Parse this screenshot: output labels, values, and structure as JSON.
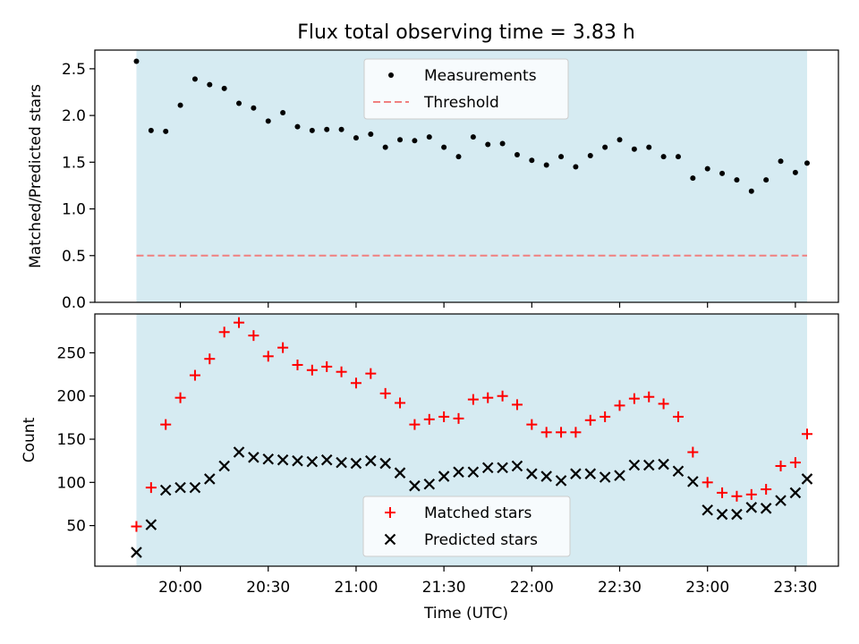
{
  "title": "Flux total observing time = 3.83 h",
  "colors": {
    "shade": "#add8e6",
    "measurement": "#000000",
    "threshold": "#f08080",
    "matched": "#ff0000",
    "predicted": "#000000"
  },
  "chart_data": [
    {
      "type": "scatter",
      "panel": "top",
      "ylabel": "Matched/Predicted stars",
      "ylim": [
        0,
        2.7
      ],
      "yticks": [
        "0.0",
        "0.5",
        "1.0",
        "1.5",
        "2.0",
        "2.5"
      ],
      "legend_position": "upper center",
      "shaded_interval": [
        "19:45",
        "23:34"
      ],
      "threshold": {
        "name": "Threshold",
        "value": 0.5,
        "style": "dashed"
      },
      "series": [
        {
          "name": "Measurements",
          "marker": "dot",
          "x": [
            "19:45",
            "19:50",
            "19:55",
            "20:00",
            "20:05",
            "20:10",
            "20:15",
            "20:20",
            "20:25",
            "20:30",
            "20:35",
            "20:40",
            "20:45",
            "20:50",
            "20:55",
            "21:00",
            "21:05",
            "21:10",
            "21:15",
            "21:20",
            "21:25",
            "21:30",
            "21:35",
            "21:40",
            "21:45",
            "21:50",
            "21:55",
            "22:00",
            "22:05",
            "22:10",
            "22:15",
            "22:20",
            "22:25",
            "22:30",
            "22:35",
            "22:40",
            "22:45",
            "22:50",
            "22:55",
            "23:00",
            "23:05",
            "23:10",
            "23:15",
            "23:20",
            "23:25",
            "23:30",
            "23:34"
          ],
          "values": [
            2.58,
            1.84,
            1.83,
            2.11,
            2.39,
            2.33,
            2.29,
            2.13,
            2.08,
            1.94,
            2.03,
            1.88,
            1.84,
            1.85,
            1.85,
            1.76,
            1.8,
            1.66,
            1.74,
            1.73,
            1.77,
            1.66,
            1.56,
            1.77,
            1.69,
            1.7,
            1.58,
            1.52,
            1.47,
            1.56,
            1.45,
            1.57,
            1.66,
            1.74,
            1.64,
            1.66,
            1.56,
            1.56,
            1.33,
            1.43,
            1.38,
            1.31,
            1.19,
            1.31,
            1.51,
            1.39,
            1.49
          ]
        }
      ]
    },
    {
      "type": "scatter",
      "panel": "bottom",
      "ylabel": "Count",
      "xlabel": "Time (UTC)",
      "ylim": [
        3,
        295
      ],
      "yticks": [
        "50",
        "100",
        "150",
        "200",
        "250"
      ],
      "xticks": [
        "20:00",
        "20:30",
        "21:00",
        "21:30",
        "22:00",
        "22:30",
        "23:00",
        "23:30"
      ],
      "legend_position": "lower center",
      "shaded_interval": [
        "19:45",
        "23:34"
      ],
      "series": [
        {
          "name": "Matched stars",
          "marker": "plus",
          "x": [
            "19:45",
            "19:50",
            "19:55",
            "20:00",
            "20:05",
            "20:10",
            "20:15",
            "20:20",
            "20:25",
            "20:30",
            "20:35",
            "20:40",
            "20:45",
            "20:50",
            "20:55",
            "21:00",
            "21:05",
            "21:10",
            "21:15",
            "21:20",
            "21:25",
            "21:30",
            "21:35",
            "21:40",
            "21:45",
            "21:50",
            "21:55",
            "22:00",
            "22:05",
            "22:10",
            "22:15",
            "22:20",
            "22:25",
            "22:30",
            "22:35",
            "22:40",
            "22:45",
            "22:50",
            "22:55",
            "23:00",
            "23:05",
            "23:10",
            "23:15",
            "23:20",
            "23:25",
            "23:30",
            "23:34"
          ],
          "values": [
            49,
            94,
            167,
            198,
            224,
            243,
            274,
            285,
            270,
            246,
            256,
            236,
            230,
            234,
            228,
            215,
            226,
            203,
            192,
            167,
            173,
            176,
            174,
            196,
            198,
            200,
            190,
            167,
            158,
            158,
            158,
            172,
            176,
            189,
            197,
            199,
            191,
            176,
            135,
            100,
            88,
            84,
            86,
            92,
            119,
            123,
            156
          ]
        },
        {
          "name": "Predicted stars",
          "marker": "x",
          "x": [
            "19:45",
            "19:50",
            "19:55",
            "20:00",
            "20:05",
            "20:10",
            "20:15",
            "20:20",
            "20:25",
            "20:30",
            "20:35",
            "20:40",
            "20:45",
            "20:50",
            "20:55",
            "21:00",
            "21:05",
            "21:10",
            "21:15",
            "21:20",
            "21:25",
            "21:30",
            "21:35",
            "21:40",
            "21:45",
            "21:50",
            "21:55",
            "22:00",
            "22:05",
            "22:10",
            "22:15",
            "22:20",
            "22:25",
            "22:30",
            "22:35",
            "22:40",
            "22:45",
            "22:50",
            "22:55",
            "23:00",
            "23:05",
            "23:10",
            "23:15",
            "23:20",
            "23:25",
            "23:30",
            "23:34"
          ],
          "values": [
            19,
            51,
            91,
            94,
            94,
            104,
            119,
            135,
            129,
            127,
            126,
            125,
            124,
            126,
            123,
            122,
            125,
            122,
            111,
            96,
            98,
            107,
            112,
            112,
            117,
            117,
            119,
            110,
            107,
            102,
            110,
            110,
            106,
            108,
            120,
            120,
            121,
            113,
            101,
            68,
            63,
            63,
            71,
            70,
            79,
            88,
            104
          ]
        }
      ]
    }
  ]
}
